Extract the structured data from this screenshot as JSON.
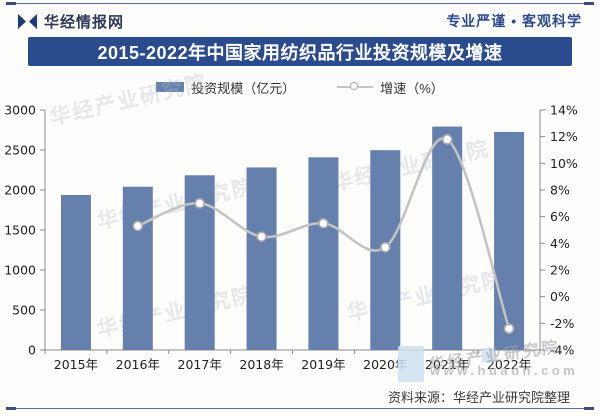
{
  "header": {
    "brand": "华经情报网",
    "slogan": "专业严谨 • 客观科学"
  },
  "title": "2015-2022年中国家用纺织品行业投资规模及增速",
  "legend": {
    "bar_label": "投资规模（亿元）",
    "line_label": "增速（%）"
  },
  "source": "资料来源：华经产业研究院整理",
  "watermark": {
    "name": "华经产业研究院",
    "url": "www.huaon.com"
  },
  "colors": {
    "bar": "#6580ac",
    "title_bg": "#2b4b8f",
    "line": "#c3c3c3",
    "marker_stroke": "#ababab",
    "axis": "#8a8a8a"
  },
  "chart_data": {
    "type": "bar",
    "subtype": "bar+line combo, dual axis",
    "title": "2015-2022年中国家用纺织品行业投资规模及增速",
    "categories": [
      "2015年",
      "2016年",
      "2017年",
      "2018年",
      "2019年",
      "2020年",
      "2021年",
      "2022年"
    ],
    "series": [
      {
        "name": "投资规模（亿元）",
        "type": "bar",
        "axis": "left",
        "values": [
          1938,
          2041,
          2184,
          2282,
          2408,
          2498,
          2793,
          2726
        ]
      },
      {
        "name": "增速（%）",
        "type": "line",
        "axis": "right",
        "values": [
          null,
          5.3,
          7.0,
          4.5,
          5.5,
          3.7,
          11.8,
          -2.4
        ]
      }
    ],
    "left_axis": {
      "min": 0,
      "max": 3000,
      "step": 500,
      "ticks": [
        0,
        500,
        1000,
        1500,
        2000,
        2500,
        3000
      ],
      "suffix": ""
    },
    "right_axis": {
      "min": -4,
      "max": 14,
      "step": 2,
      "ticks": [
        -4,
        -2,
        0,
        2,
        4,
        6,
        8,
        10,
        12,
        14
      ],
      "suffix": "%"
    },
    "grid": false,
    "legend_position": "top-center"
  }
}
